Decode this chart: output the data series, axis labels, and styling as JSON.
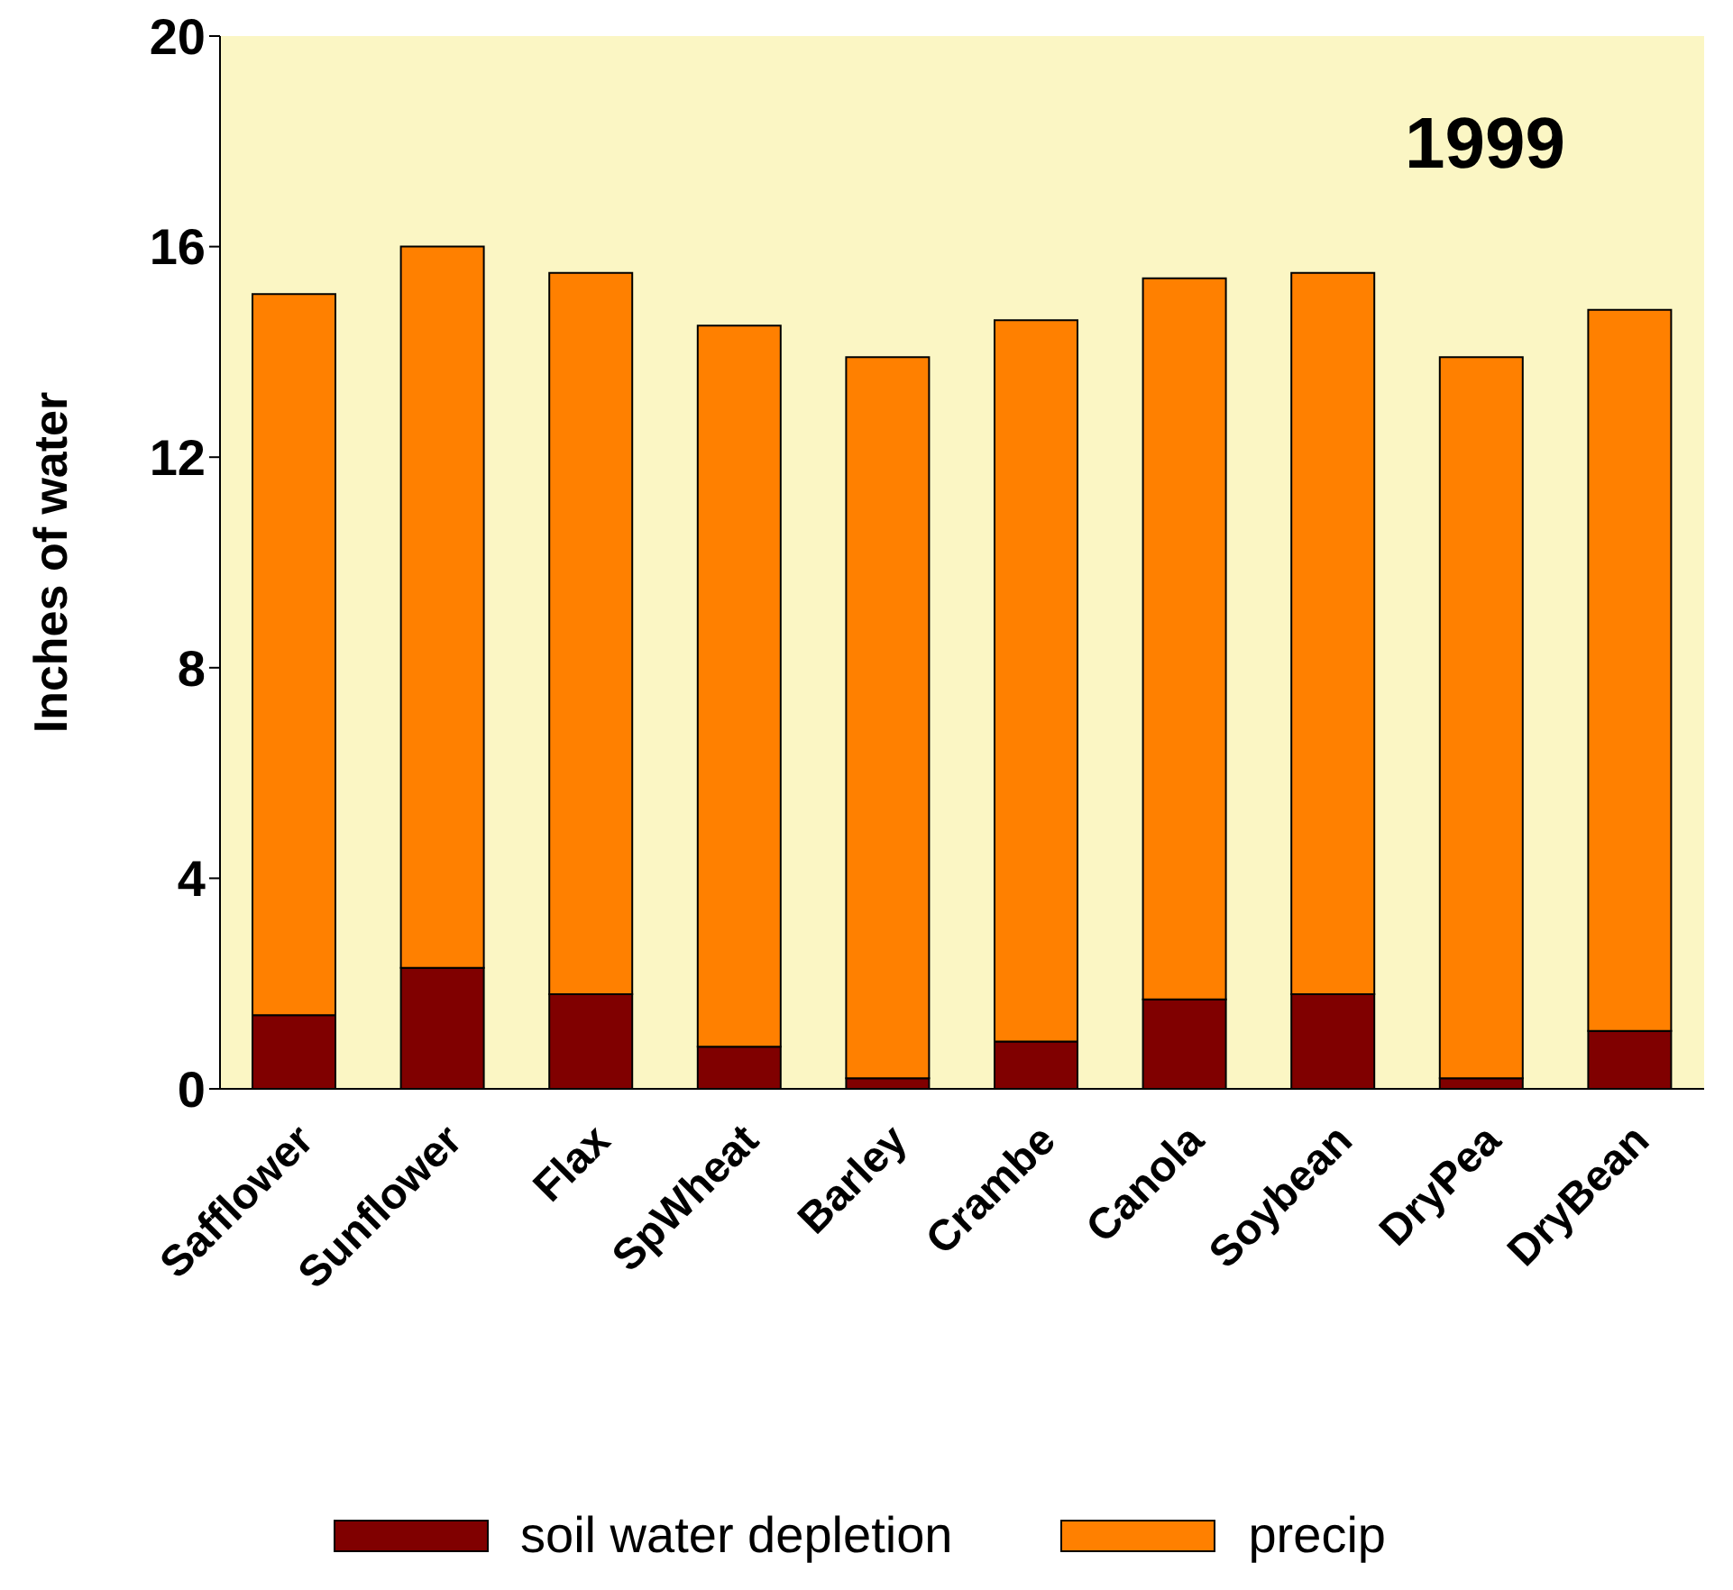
{
  "chart_data": {
    "type": "bar",
    "stacked": true,
    "ylabel": "Inches of water",
    "annotations": [
      "1999"
    ],
    "categories": [
      "Safflower",
      "Sunflower",
      "Flax",
      "SpWheat",
      "Barley",
      "Crambe",
      "Canola",
      "Soybean",
      "DryPea",
      "DryBean"
    ],
    "series": [
      {
        "name": "soil water depletion",
        "color": "#800000",
        "values": [
          1.4,
          2.3,
          1.8,
          0.8,
          0.2,
          0.9,
          1.7,
          1.8,
          0.2,
          1.1
        ]
      },
      {
        "name": "precip",
        "color": "#ff8000",
        "values": [
          13.7,
          13.7,
          13.7,
          13.7,
          13.7,
          13.7,
          13.7,
          13.7,
          13.7,
          13.7
        ]
      }
    ],
    "ylim": [
      0,
      20
    ],
    "yticks": [
      0,
      4,
      8,
      12,
      16,
      20
    ],
    "grid": false,
    "legend": "bottom"
  }
}
